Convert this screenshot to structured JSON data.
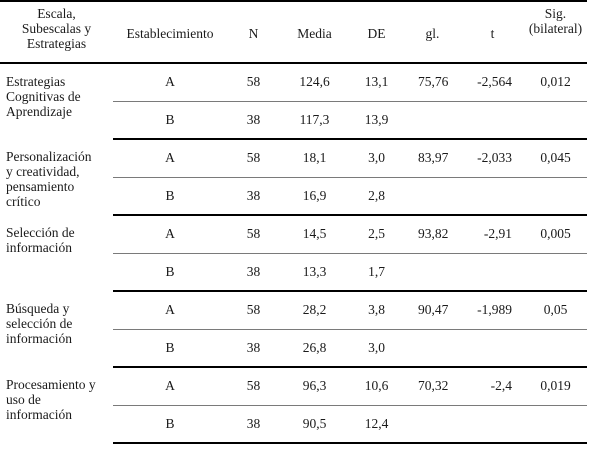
{
  "headers": {
    "scale": [
      "Escala,",
      "Subescalas y",
      "Estrategias"
    ],
    "establishment": "Establecimiento",
    "n": "N",
    "media": "Media",
    "de": "DE",
    "gl": "gl.",
    "t": "t",
    "sig": [
      "Sig.",
      "(bilateral)"
    ]
  },
  "groups": [
    {
      "label": [
        "Estrategias",
        "Cognitivas de",
        "Aprendizaje"
      ],
      "gl": "75,76",
      "t": "-2,564",
      "sig": "0,012",
      "rows": [
        {
          "est": "A",
          "n": "58",
          "media": "124,6",
          "de": "13,1"
        },
        {
          "est": "B",
          "n": "38",
          "media": "117,3",
          "de": "13,9"
        }
      ]
    },
    {
      "label": [
        "Personalización",
        "y creatividad,",
        "pensamiento",
        "crítico"
      ],
      "gl": "83,97",
      "t": "-2,033",
      "sig": "0,045",
      "rows": [
        {
          "est": "A",
          "n": "58",
          "media": "18,1",
          "de": "3,0"
        },
        {
          "est": "B",
          "n": "38",
          "media": "16,9",
          "de": "2,8"
        }
      ]
    },
    {
      "label": [
        "Selección de",
        "información"
      ],
      "gl": "93,82",
      "t": "-2,91",
      "sig": "0,005",
      "rows": [
        {
          "est": "A",
          "n": "58",
          "media": "14,5",
          "de": "2,5"
        },
        {
          "est": "B",
          "n": "38",
          "media": "13,3",
          "de": "1,7"
        }
      ]
    },
    {
      "label": [
        "Búsqueda y",
        "selección de",
        "información"
      ],
      "gl": "90,47",
      "t": "-1,989",
      "sig": "0,05",
      "rows": [
        {
          "est": "A",
          "n": "58",
          "media": "28,2",
          "de": "3,8"
        },
        {
          "est": "B",
          "n": "38",
          "media": "26,8",
          "de": "3,0"
        }
      ]
    },
    {
      "label": [
        "Procesamiento y",
        "uso de",
        "información"
      ],
      "gl": "70,32",
      "t": "-2,4",
      "sig": "0,019",
      "rows": [
        {
          "est": "A",
          "n": "58",
          "media": "96,3",
          "de": "10,6"
        },
        {
          "est": "B",
          "n": "38",
          "media": "90,5",
          "de": "12,4"
        }
      ]
    }
  ]
}
